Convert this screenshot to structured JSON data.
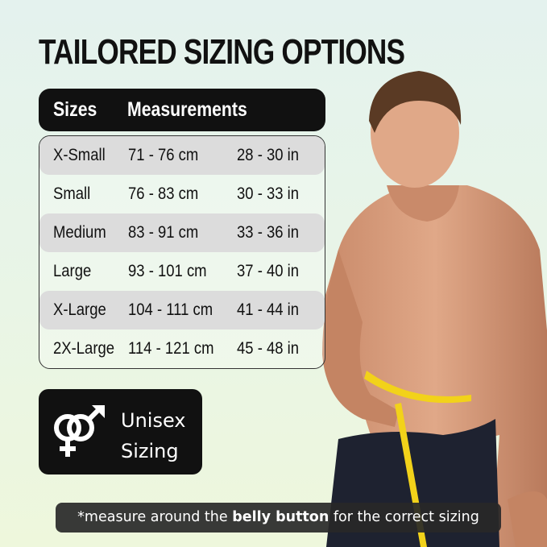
{
  "title": "TAILORED SIZING OPTIONS",
  "table": {
    "headers": [
      "Sizes",
      "Measurements"
    ],
    "rows": [
      {
        "size": "X-Small",
        "cm": "71 - 76 cm",
        "in": "28 - 30 in"
      },
      {
        "size": "Small",
        "cm": "76 - 83 cm",
        "in": "30 - 33 in"
      },
      {
        "size": "Medium",
        "cm": "83 - 91 cm",
        "in": "33 - 36 in"
      },
      {
        "size": "Large",
        "cm": "93 - 101 cm",
        "in": "37 - 40 in"
      },
      {
        "size": "X-Large",
        "cm": "104 - 111 cm",
        "in": "41 - 44 in"
      },
      {
        "size": "2X-Large",
        "cm": "114 - 121 cm",
        "in": "45 - 48 in"
      }
    ]
  },
  "badge": {
    "icon": "male-female-symbol-icon",
    "line1": "Unisex",
    "line2": "Sizing"
  },
  "note": {
    "before": "*measure around the ",
    "bold": "belly button",
    "after": " for the correct sizing"
  },
  "colors": {
    "dark": "#111111",
    "row_shade": "#dcdcdc",
    "tape": "#f2d21a"
  }
}
